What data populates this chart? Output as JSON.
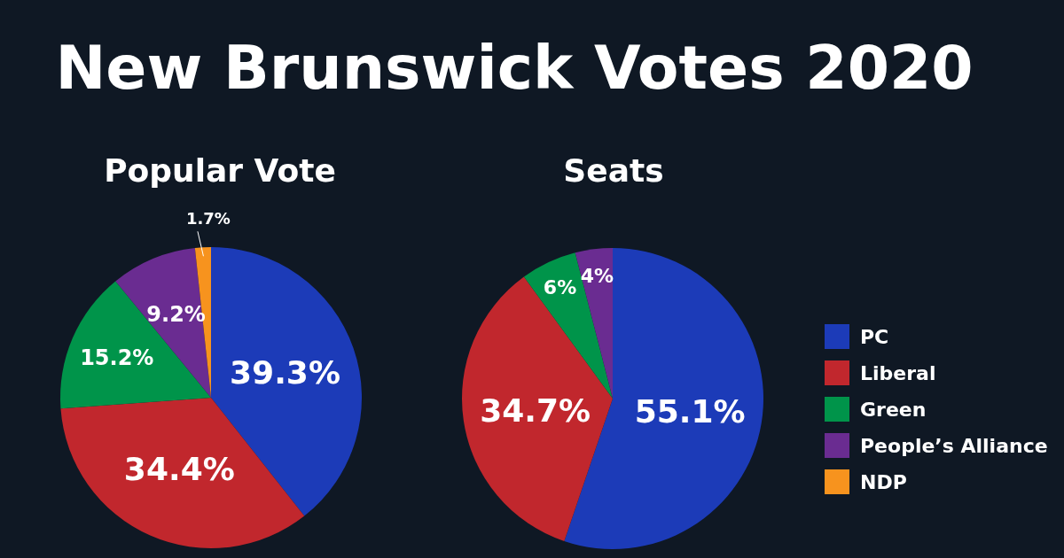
{
  "chart_data": [
    {
      "type": "pie",
      "title": "New Brunswick Votes 2020",
      "subtitle": "Popular Vote",
      "categories": [
        "PC",
        "Liberal",
        "Green",
        "People’s Alliance",
        "NDP"
      ],
      "values": [
        39.3,
        34.4,
        15.2,
        9.2,
        1.7
      ],
      "value_labels": [
        "39.3%",
        "34.4%",
        "15.2%",
        "9.2%",
        "1.7%"
      ],
      "colors": [
        "#1c3bb8",
        "#c1272d",
        "#00944a",
        "#6a2c91",
        "#f7931e"
      ],
      "legend": "right"
    },
    {
      "type": "pie",
      "title": "Seats",
      "categories": [
        null,
        null,
        null,
        null
      ],
      "values": [
        55.1,
        34.7,
        6,
        4
      ],
      "value_labels": [
        "55.1%",
        "34.7%",
        "6%",
        "4%"
      ],
      "colors": [
        "#1c3bb8",
        "#c1272d",
        "#00944a",
        "#6a2c91"
      ]
    }
  ]
}
